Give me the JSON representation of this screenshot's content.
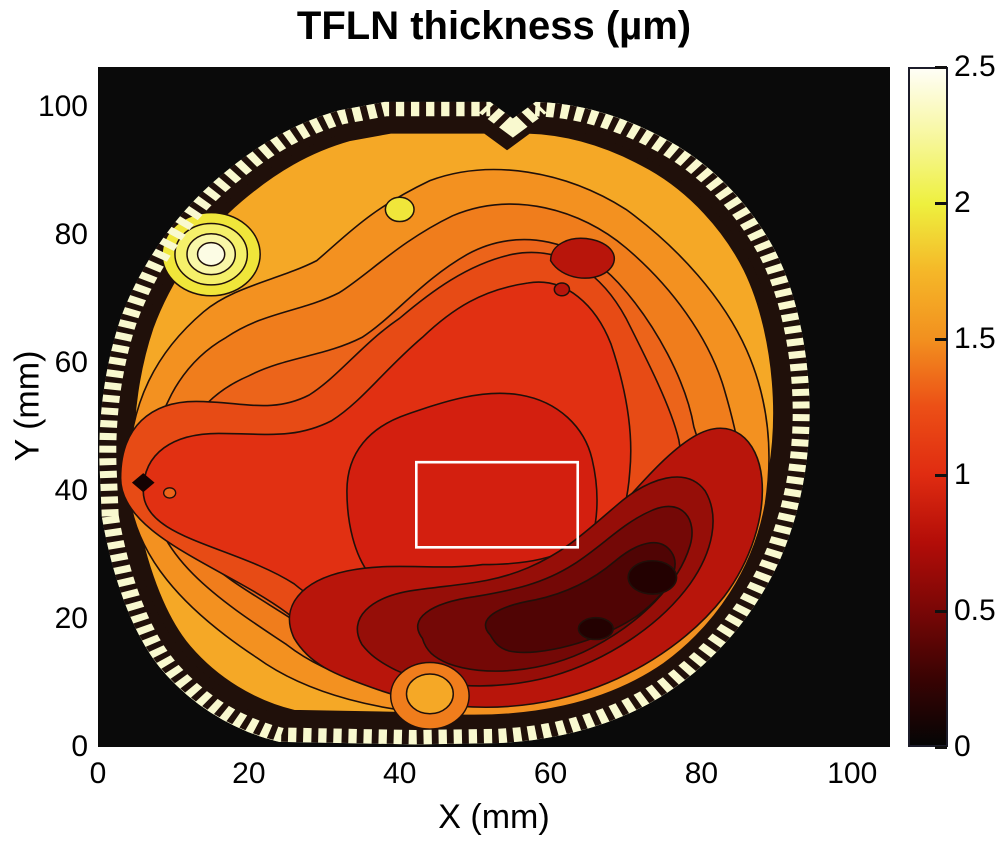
{
  "chart_data": {
    "type": "filled_contour",
    "title": "TFLN thickness (µm)",
    "xlabel": "X (mm)",
    "ylabel": "Y (mm)",
    "xlim": [
      0,
      105
    ],
    "ylim": [
      0,
      106
    ],
    "xticks": [
      0,
      20,
      40,
      60,
      80,
      100
    ],
    "yticks": [
      0,
      20,
      40,
      60,
      80,
      100
    ],
    "units": "µm",
    "colormap": "hot",
    "colormap_stops": [
      {
        "v": 0.0,
        "c": "#050505"
      },
      {
        "v": 0.25,
        "c": "#3a0303"
      },
      {
        "v": 0.5,
        "c": "#7a0706"
      },
      {
        "v": 0.75,
        "c": "#b30d08"
      },
      {
        "v": 1.0,
        "c": "#e02c11"
      },
      {
        "v": 1.25,
        "c": "#ec4f16"
      },
      {
        "v": 1.5,
        "c": "#f2901f"
      },
      {
        "v": 1.75,
        "c": "#f5b728"
      },
      {
        "v": 2.0,
        "c": "#eef03e"
      },
      {
        "v": 2.25,
        "c": "#f7f79e"
      },
      {
        "v": 2.5,
        "c": "#fffef6"
      }
    ],
    "colorbar": {
      "min": 0,
      "max": 2.5,
      "ticks": [
        0,
        0.5,
        1,
        1.5,
        2,
        2.5
      ],
      "tick_labels": [
        "0",
        "0.5",
        "1",
        "1.5",
        "2",
        "2.5"
      ]
    },
    "contour_interval_um": 0.125,
    "background_color": "#0a0a0a",
    "wafer": {
      "center_mm": [
        46,
        51
      ],
      "radius_mm": 47,
      "note": "near-circular wafer map on black background; flat bottom edge, small notch at top near x=55; bright (thick) jagged rim, thickness decreases toward a minimum in the lower-right quadrant"
    },
    "annotation_rect_mm": {
      "x": [
        42.2,
        63.6
      ],
      "y": [
        31.2,
        44.5
      ],
      "color": "#ffffff"
    },
    "features": [
      {
        "name": "local-max-bullseye",
        "x_mm": 15,
        "y_mm": 77,
        "value_um": 2.3
      },
      {
        "name": "small-yellow-spot",
        "x_mm": 40,
        "y_mm": 84,
        "value_um": 1.8
      },
      {
        "name": "dark-spot-upper-right",
        "x_mm": 64,
        "y_mm": 76,
        "value_um": 0.85
      },
      {
        "name": "black-diamond-marker",
        "x_mm": 6,
        "y_mm": 41
      },
      {
        "name": "near-black-minimum",
        "x_mm": 73.5,
        "y_mm": 26.5,
        "value_um": 0.15
      },
      {
        "name": "dark-spot-secondary",
        "x_mm": 66,
        "y_mm": 18.5,
        "value_um": 0.25
      },
      {
        "name": "orange-bump-bottom",
        "x_mm": 44,
        "y_mm": 8,
        "value_um": 1.6
      }
    ],
    "grid_estimate": {
      "note": "thickness (µm) estimated from fill colors; rows ordered y ascending; null = outside wafer",
      "x_mm": [
        0,
        10,
        20,
        30,
        40,
        50,
        60,
        70,
        80,
        90,
        100
      ],
      "y_mm": [
        0,
        10,
        20,
        30,
        40,
        50,
        60,
        70,
        80,
        90,
        100
      ],
      "thickness_um": [
        [
          null,
          null,
          1.9,
          1.8,
          1.7,
          1.8,
          1.8,
          1.9,
          null,
          null,
          null
        ],
        [
          null,
          1.6,
          1.3,
          1.1,
          1.4,
          0.9,
          0.8,
          1.0,
          1.5,
          null,
          null
        ],
        [
          null,
          1.3,
          1.15,
          0.95,
          0.8,
          0.6,
          0.35,
          0.45,
          0.8,
          null,
          null
        ],
        [
          1.7,
          1.15,
          1.1,
          1.0,
          0.85,
          0.7,
          0.5,
          0.2,
          0.5,
          0.9,
          null
        ],
        [
          1.6,
          1.0,
          1.1,
          1.05,
          1.0,
          0.95,
          0.9,
          0.5,
          0.35,
          1.0,
          null
        ],
        [
          1.9,
          1.3,
          1.2,
          1.1,
          1.05,
          1.0,
          0.85,
          0.6,
          0.45,
          0.9,
          null
        ],
        [
          1.9,
          1.5,
          1.35,
          1.25,
          1.2,
          1.1,
          1.0,
          0.8,
          0.6,
          1.0,
          null
        ],
        [
          null,
          1.8,
          1.5,
          1.4,
          1.35,
          1.25,
          1.1,
          0.9,
          0.8,
          1.3,
          null
        ],
        [
          null,
          2.0,
          1.8,
          1.6,
          1.55,
          1.3,
          1.1,
          0.85,
          1.2,
          null,
          null
        ],
        [
          null,
          null,
          1.9,
          1.75,
          1.6,
          1.5,
          1.35,
          1.5,
          null,
          null,
          null
        ],
        [
          null,
          null,
          null,
          2.0,
          1.95,
          1.9,
          1.95,
          null,
          null,
          null,
          null
        ]
      ]
    }
  }
}
